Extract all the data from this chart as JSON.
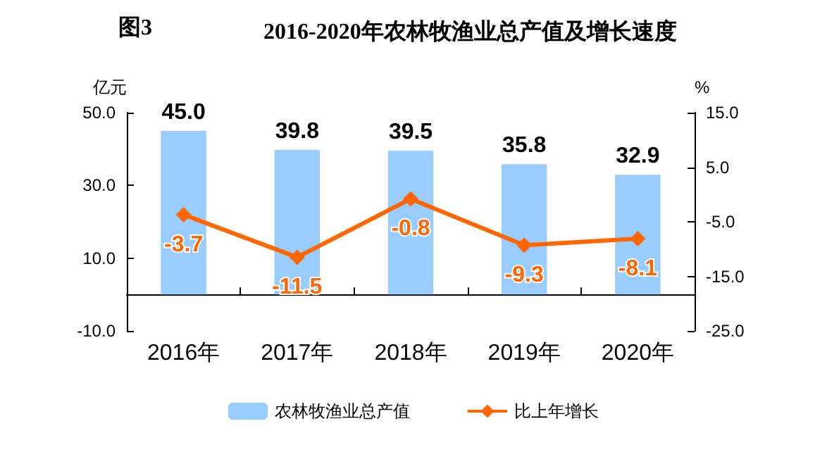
{
  "chart_data": {
    "type": "bar",
    "title": "2016-2020年农林牧渔业总产值及增长速度",
    "annotations": [
      "图3"
    ],
    "ylabel": "亿元",
    "y2label": "%",
    "categories": [
      "2016年",
      "2017年",
      "2018年",
      "2019年",
      "2020年"
    ],
    "series": [
      {
        "name": "农林牧渔业总产值",
        "color": "#99ccff",
        "values": [
          45.0,
          39.8,
          39.5,
          35.8,
          32.9
        ],
        "value_labels": [
          "45.0",
          "39.8",
          "39.5",
          "35.8",
          "32.9"
        ]
      },
      {
        "name": "比上年增长",
        "type": "line",
        "axis": "y2",
        "color": "#ff6600",
        "marker": "diamond",
        "values": [
          -3.7,
          -11.5,
          -0.8,
          -9.3,
          -8.1
        ],
        "value_labels": [
          "-3.7",
          "-11.5",
          "-0.8",
          "-9.3",
          "-8.1"
        ]
      }
    ],
    "ylim": [
      -10,
      50
    ],
    "yticks": [
      {
        "value": -10,
        "label": "-10.0"
      },
      {
        "value": 10,
        "label": "10.0"
      },
      {
        "value": 30,
        "label": "30.0"
      },
      {
        "value": 50,
        "label": "50.0"
      }
    ],
    "y2lim": [
      -25,
      15
    ],
    "y2ticks": [
      {
        "value": -25,
        "label": "-25.0"
      },
      {
        "value": -15,
        "label": "-15.0"
      },
      {
        "value": -5,
        "label": "-5.0"
      },
      {
        "value": 5,
        "label": "5.0"
      },
      {
        "value": 15,
        "label": "15.0"
      }
    ],
    "grid": false,
    "legend": "bottom"
  }
}
